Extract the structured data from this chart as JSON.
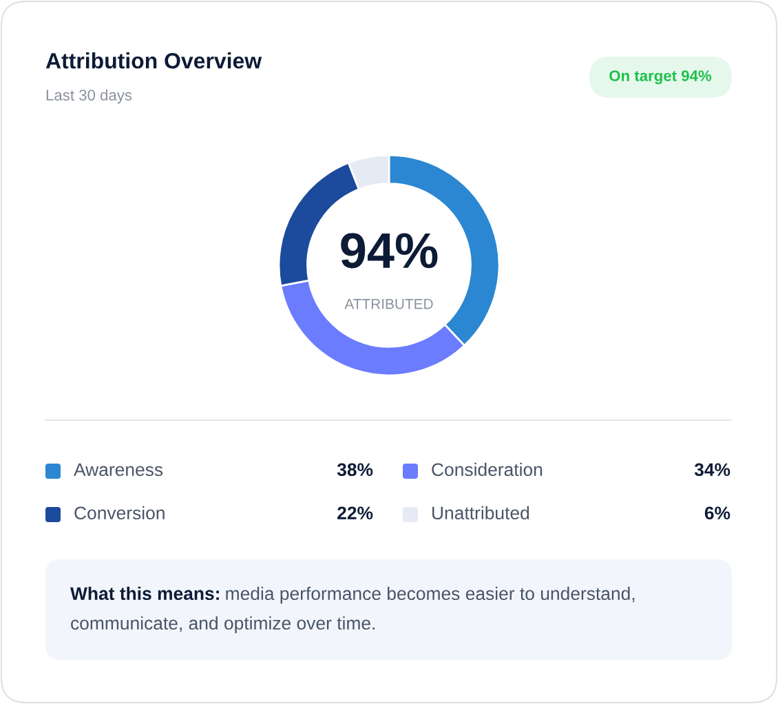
{
  "chart_data": {
    "type": "donut",
    "title": "Attribution Overview",
    "subtitle": "Last 30 days",
    "categories": [
      "Awareness",
      "Consideration",
      "Conversion",
      "Unattributed"
    ],
    "values": [
      38,
      34,
      22,
      6
    ],
    "colors": [
      "#2b87d1",
      "#6b7cff",
      "#1c4a9c",
      "#e6eaf5"
    ],
    "value_labels": [
      "38%",
      "34%",
      "22%",
      "6%"
    ],
    "legend": "bottom",
    "annotations": [
      "On target 94%",
      "94%",
      "ATTRIBUTED",
      "What this means:",
      "media performance becomes easier to understand, communicate, and optimize over time."
    ]
  }
}
